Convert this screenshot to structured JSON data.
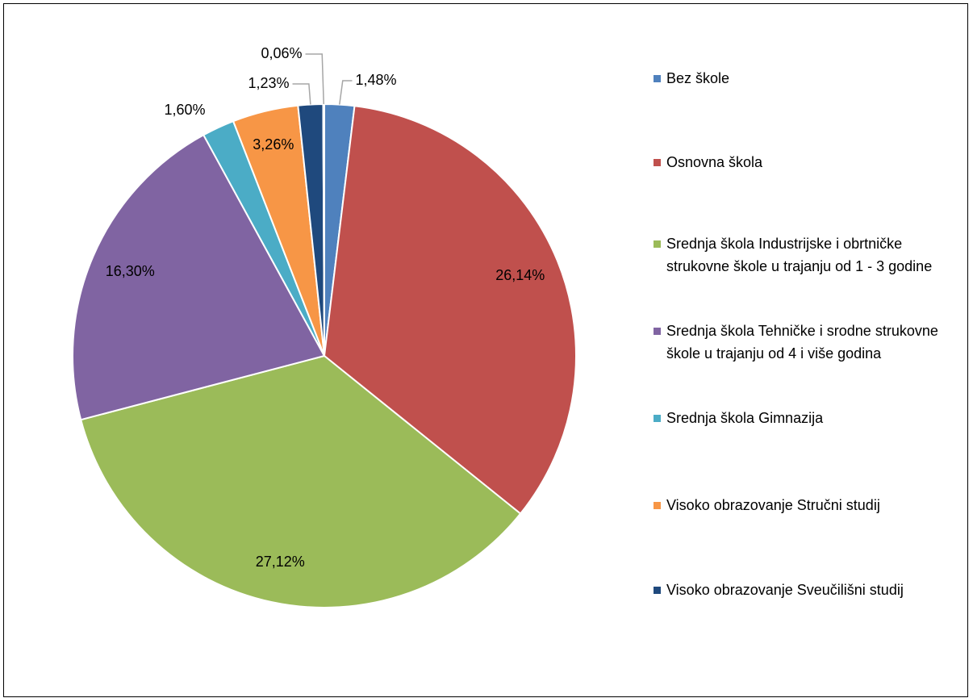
{
  "chart_data": {
    "type": "pie",
    "categories": [
      "Bez škole",
      "Osnovna škola",
      "Srednja škola Industrijske i obrtničke strukovne škole u trajanju od 1 - 3 godine",
      "Srednja škola Tehničke i srodne strukovne škole u trajanju od 4 i više godina",
      "Srednja škola Gimnazija",
      "Visoko obrazovanje Stručni studij",
      "Visoko obrazovanje Sveučilišni studij",
      null
    ],
    "values": [
      1.48,
      26.14,
      27.12,
      16.3,
      1.6,
      3.26,
      1.23,
      0.06
    ],
    "value_labels": [
      "1,48%",
      "26,14%",
      "27,12%",
      "16,30%",
      "1,60%",
      "3,26%",
      "1,23%",
      "0,06%"
    ],
    "colors": [
      "#4f81bd",
      "#c0504d",
      "#9bbb59",
      "#8064a2",
      "#4bacc6",
      "#f79646",
      "#1f497d",
      "#bfbfbf"
    ],
    "legend": "right"
  }
}
